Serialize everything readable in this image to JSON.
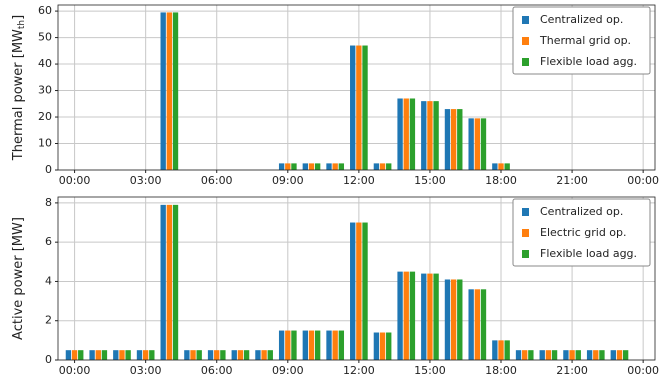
{
  "chart_data": [
    {
      "type": "bar",
      "ylabel": "Thermal power [MW",
      "ylabel_subscript": "th",
      "ylabel_suffix": "]",
      "x": [
        0,
        1,
        2,
        3,
        4,
        5,
        6,
        7,
        8,
        9,
        10,
        11,
        12,
        13,
        14,
        15,
        16,
        17,
        18,
        19,
        20,
        21,
        22,
        23
      ],
      "xlim": [
        -0.7,
        24.5
      ],
      "xticks": [
        {
          "value": 0,
          "label": "00:00"
        },
        {
          "value": 3,
          "label": "03:00"
        },
        {
          "value": 6,
          "label": "06:00"
        },
        {
          "value": 9,
          "label": "09:00"
        },
        {
          "value": 12,
          "label": "12:00"
        },
        {
          "value": 15,
          "label": "15:00"
        },
        {
          "value": 18,
          "label": "18:00"
        },
        {
          "value": 21,
          "label": "21:00"
        },
        {
          "value": 24,
          "label": "00:00"
        }
      ],
      "ylim": [
        0,
        62.3
      ],
      "yticks": [
        0,
        10,
        20,
        30,
        40,
        50,
        60
      ],
      "grid": true,
      "legend": "upper right",
      "series": [
        {
          "name": "Centralized op.",
          "color": "#1f77b4",
          "values": [
            0,
            0,
            0,
            0,
            59.5,
            0,
            0,
            0,
            0,
            2.5,
            2.5,
            2.5,
            47,
            2.5,
            27,
            26,
            23,
            19.5,
            2.5,
            0,
            0,
            0,
            0,
            0
          ]
        },
        {
          "name": "Thermal grid op.",
          "color": "#ff7f0e",
          "values": [
            0,
            0,
            0,
            0,
            59.5,
            0,
            0,
            0,
            0,
            2.5,
            2.5,
            2.5,
            47,
            2.5,
            27,
            26,
            23,
            19.5,
            2.5,
            0,
            0,
            0,
            0,
            0
          ]
        },
        {
          "name": "Flexible load agg.",
          "color": "#2ca02c",
          "values": [
            0,
            0,
            0,
            0,
            59.5,
            0,
            0,
            0,
            0,
            2.5,
            2.5,
            2.5,
            47,
            2.5,
            27,
            26,
            23,
            19.5,
            2.5,
            0,
            0,
            0,
            0,
            0
          ]
        }
      ]
    },
    {
      "type": "bar",
      "ylabel": "Active power [MW]",
      "x": [
        0,
        1,
        2,
        3,
        4,
        5,
        6,
        7,
        8,
        9,
        10,
        11,
        12,
        13,
        14,
        15,
        16,
        17,
        18,
        19,
        20,
        21,
        22,
        23
      ],
      "xlim": [
        -0.7,
        24.5
      ],
      "xticks": [
        {
          "value": 0,
          "label": "00:00"
        },
        {
          "value": 3,
          "label": "03:00"
        },
        {
          "value": 6,
          "label": "06:00"
        },
        {
          "value": 9,
          "label": "09:00"
        },
        {
          "value": 12,
          "label": "12:00"
        },
        {
          "value": 15,
          "label": "15:00"
        },
        {
          "value": 18,
          "label": "18:00"
        },
        {
          "value": 21,
          "label": "21:00"
        },
        {
          "value": 24,
          "label": "00:00"
        }
      ],
      "ylim": [
        0,
        8.3
      ],
      "yticks": [
        0,
        2,
        4,
        6,
        8
      ],
      "grid": true,
      "legend": "upper right",
      "series": [
        {
          "name": "Centralized op.",
          "color": "#1f77b4",
          "values": [
            0.5,
            0.5,
            0.5,
            0.5,
            7.9,
            0.5,
            0.5,
            0.5,
            0.5,
            1.5,
            1.5,
            1.5,
            7.0,
            1.4,
            4.5,
            4.4,
            4.1,
            3.6,
            1.0,
            0.5,
            0.5,
            0.5,
            0.5,
            0.5
          ]
        },
        {
          "name": "Electric grid op.",
          "color": "#ff7f0e",
          "values": [
            0.5,
            0.5,
            0.5,
            0.5,
            7.9,
            0.5,
            0.5,
            0.5,
            0.5,
            1.5,
            1.5,
            1.5,
            7.0,
            1.4,
            4.5,
            4.4,
            4.1,
            3.6,
            1.0,
            0.5,
            0.5,
            0.5,
            0.5,
            0.5
          ]
        },
        {
          "name": "Flexible load agg.",
          "color": "#2ca02c",
          "values": [
            0.5,
            0.5,
            0.5,
            0.5,
            7.9,
            0.5,
            0.5,
            0.5,
            0.5,
            1.5,
            1.5,
            1.5,
            7.0,
            1.4,
            4.5,
            4.4,
            4.1,
            3.6,
            1.0,
            0.5,
            0.5,
            0.5,
            0.5,
            0.5
          ]
        }
      ]
    }
  ]
}
